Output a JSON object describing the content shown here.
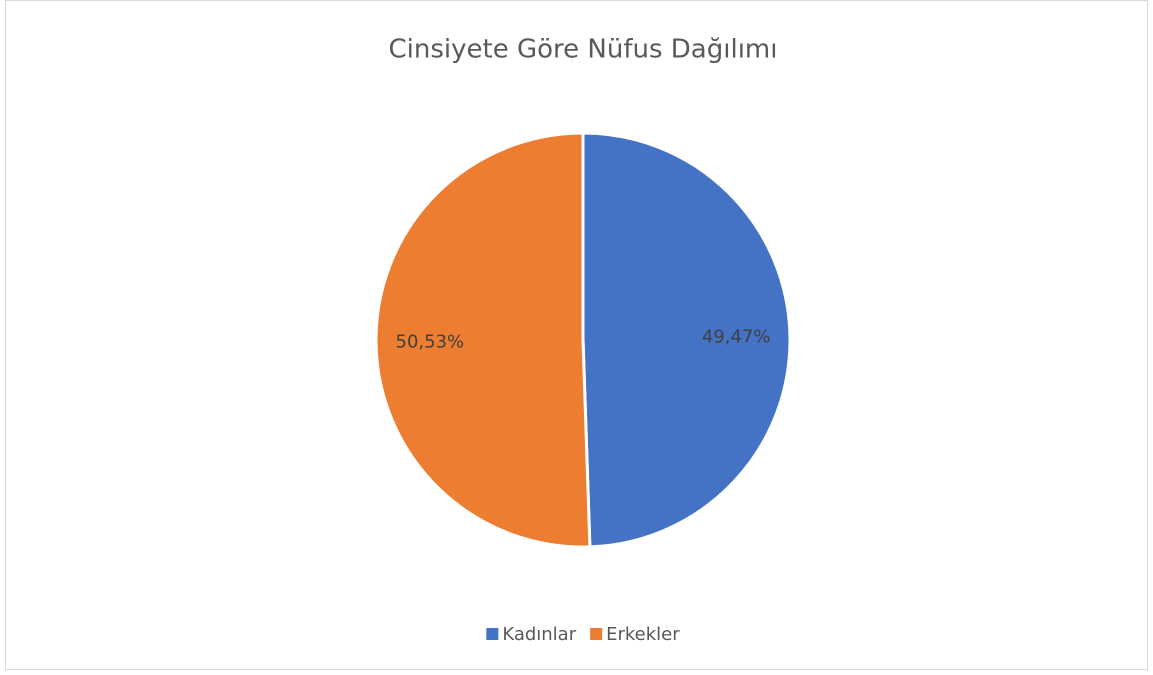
{
  "chart_data": {
    "type": "pie",
    "title": "Cinsiyete Göre Nüfus Dağılımı",
    "categories": [
      "Kadınlar",
      "Erkekler"
    ],
    "values": [
      49.47,
      50.53
    ],
    "value_labels": [
      "49,47%",
      "50,53%"
    ],
    "colors": [
      "#4472c4",
      "#ed7d31"
    ],
    "legend": "bottom"
  }
}
